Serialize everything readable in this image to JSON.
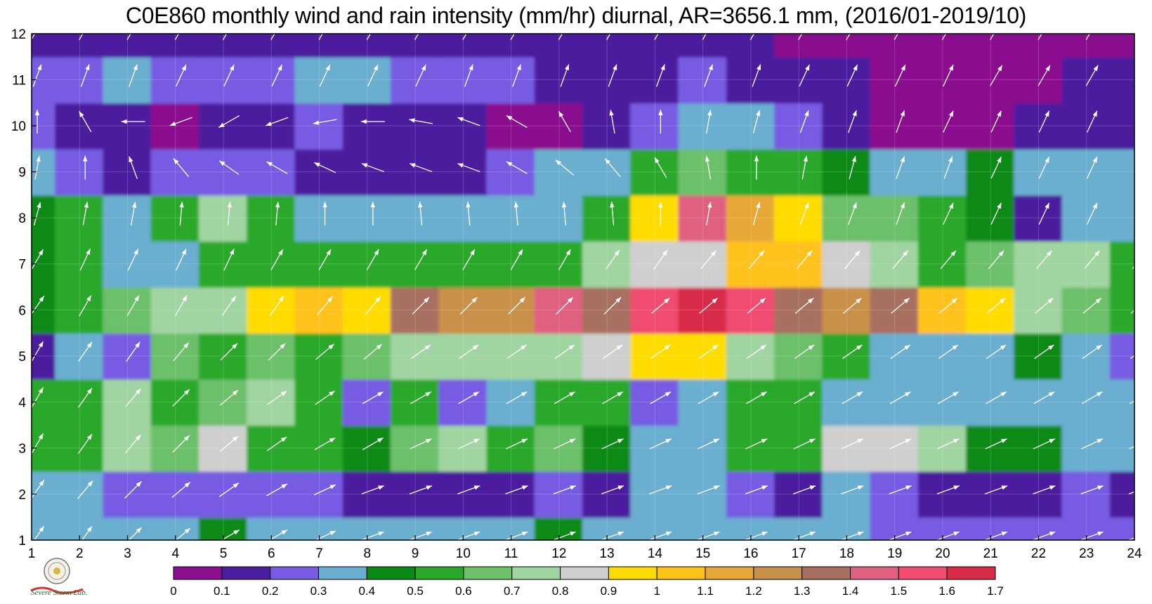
{
  "title": "C0E860 monthly wind and rain intensity (mm/hr) diurnal, AR=3656.1 mm, (2016/01-2019/10)",
  "logo": {
    "text": "Severe Storm Lab."
  },
  "chart_data": {
    "type": "heatmap",
    "title": "C0E860 monthly wind and rain intensity (mm/hr) diurnal, AR=3656.1 mm, (2016/01-2019/10)",
    "x_ticks": [
      "1",
      "2",
      "3",
      "4",
      "5",
      "6",
      "7",
      "8",
      "9",
      "10",
      "11",
      "12",
      "13",
      "14",
      "15",
      "16",
      "17",
      "18",
      "19",
      "20",
      "21",
      "22",
      "23",
      "24"
    ],
    "y_ticks": [
      "1",
      "2",
      "3",
      "4",
      "5",
      "6",
      "7",
      "8",
      "9",
      "10",
      "11",
      "12"
    ],
    "xlim": [
      1,
      24
    ],
    "ylim": [
      1,
      12
    ],
    "colorbar": {
      "levels": [
        "0",
        "0.1",
        "0.2",
        "0.3",
        "0.4",
        "0.5",
        "0.6",
        "0.7",
        "0.8",
        "0.9",
        "1",
        "1.1",
        "1.2",
        "1.3",
        "1.4",
        "1.5",
        "1.6",
        "1.7"
      ],
      "colors": [
        "#8a0e8e",
        "#4b1e9e",
        "#775ce3",
        "#6aaed0",
        "#0a8a14",
        "#2aa82a",
        "#6cc06a",
        "#a0d4a0",
        "#cfcfcf",
        "#ffdc00",
        "#ffc21a",
        "#e8a838",
        "#c8904a",
        "#a87060",
        "#e06080",
        "#f04c70",
        "#d82c48"
      ]
    },
    "rain_mm_hr": [
      [
        0.35,
        0.3,
        0.35,
        0.3,
        0.45,
        0.35,
        0.3,
        0.3,
        0.35,
        0.35,
        0.35,
        0.4,
        0.35,
        0.35,
        0.35,
        0.3,
        0.3,
        0.3,
        0.25,
        0.25,
        0.25,
        0.25,
        0.25,
        0.25
      ],
      [
        0.3,
        0.35,
        0.25,
        0.25,
        0.25,
        0.25,
        0.25,
        0.15,
        0.15,
        0.15,
        0.15,
        0.2,
        0.15,
        0.3,
        0.3,
        0.25,
        0.15,
        0.3,
        0.25,
        0.15,
        0.15,
        0.15,
        0.2,
        0.15
      ],
      [
        0.55,
        0.5,
        0.75,
        0.65,
        0.85,
        0.55,
        0.55,
        0.45,
        0.65,
        0.7,
        0.5,
        0.65,
        0.45,
        0.35,
        0.35,
        0.5,
        0.55,
        0.85,
        0.85,
        0.75,
        0.45,
        0.45,
        0.35,
        0.35
      ],
      [
        0.5,
        0.55,
        0.75,
        0.55,
        0.65,
        0.75,
        0.55,
        0.25,
        0.55,
        0.25,
        0.35,
        0.55,
        0.5,
        0.25,
        0.35,
        0.55,
        0.5,
        0.35,
        0.35,
        0.35,
        0.35,
        0.35,
        0.35,
        0.35
      ],
      [
        0.15,
        0.35,
        0.25,
        0.65,
        0.55,
        0.65,
        0.55,
        0.65,
        0.75,
        0.75,
        0.75,
        0.75,
        0.85,
        0.95,
        0.95,
        0.75,
        0.65,
        0.55,
        0.35,
        0.35,
        0.35,
        0.45,
        0.3,
        0.25
      ],
      [
        0.45,
        0.5,
        0.65,
        0.75,
        0.75,
        0.95,
        1.05,
        0.9,
        1.35,
        1.2,
        1.25,
        1.45,
        1.3,
        1.55,
        1.65,
        1.55,
        1.35,
        1.25,
        1.35,
        1.05,
        0.9,
        0.75,
        0.65,
        0.55
      ],
      [
        0.45,
        0.5,
        0.35,
        0.35,
        0.5,
        0.5,
        0.55,
        0.55,
        0.55,
        0.55,
        0.55,
        0.55,
        0.75,
        0.85,
        0.85,
        1.05,
        1.05,
        0.85,
        0.75,
        0.55,
        0.65,
        0.75,
        0.75,
        0.55
      ],
      [
        0.45,
        0.55,
        0.35,
        0.55,
        0.75,
        0.55,
        0.35,
        0.3,
        0.3,
        0.3,
        0.3,
        0.35,
        0.55,
        0.95,
        1.45,
        1.15,
        0.95,
        0.65,
        0.65,
        0.5,
        0.45,
        0.15,
        0.35,
        0.35
      ],
      [
        0.35,
        0.25,
        0.15,
        0.25,
        0.25,
        0.25,
        0.15,
        0.15,
        0.15,
        0.15,
        0.2,
        0.3,
        0.35,
        0.55,
        0.65,
        0.55,
        0.55,
        0.45,
        0.35,
        0.35,
        0.45,
        0.35,
        0.35,
        0.35
      ],
      [
        0.2,
        0.15,
        0.15,
        0.05,
        0.15,
        0.15,
        0.2,
        0.15,
        0.15,
        0.1,
        0.05,
        0.05,
        0.15,
        0.25,
        0.3,
        0.35,
        0.25,
        0.1,
        0.05,
        0.05,
        0.05,
        0.1,
        0.1,
        0.1
      ],
      [
        0.25,
        0.25,
        0.35,
        0.25,
        0.25,
        0.25,
        0.3,
        0.35,
        0.25,
        0.2,
        0.2,
        0.15,
        0.15,
        0.15,
        0.2,
        0.15,
        0.15,
        0.1,
        0.05,
        0.05,
        0.05,
        0.05,
        0.1,
        0.15
      ],
      [
        0.1,
        0.15,
        0.15,
        0.15,
        0.1,
        0.1,
        0.1,
        0.1,
        0.1,
        0.1,
        0.1,
        0.1,
        0.1,
        0.1,
        0.1,
        0.1,
        0.05,
        0.05,
        0.05,
        0.05,
        0.05,
        0.05,
        0.05,
        0.05
      ]
    ],
    "wind_angle_deg": [
      [
        55,
        55,
        45,
        40,
        30,
        30,
        25,
        20,
        20,
        20,
        20,
        20,
        20,
        20,
        20,
        20,
        20,
        20,
        20,
        20,
        20,
        20,
        20,
        20
      ],
      [
        55,
        50,
        45,
        40,
        35,
        30,
        25,
        20,
        20,
        20,
        20,
        20,
        20,
        20,
        20,
        20,
        20,
        20,
        20,
        20,
        20,
        20,
        20,
        20
      ],
      [
        60,
        55,
        50,
        45,
        40,
        35,
        30,
        30,
        25,
        25,
        25,
        25,
        25,
        25,
        25,
        25,
        25,
        25,
        25,
        25,
        25,
        25,
        25,
        25
      ],
      [
        60,
        55,
        50,
        45,
        40,
        35,
        35,
        30,
        30,
        30,
        30,
        30,
        30,
        30,
        30,
        30,
        30,
        30,
        30,
        30,
        30,
        30,
        30,
        30
      ],
      [
        60,
        55,
        55,
        50,
        45,
        45,
        40,
        40,
        35,
        35,
        35,
        35,
        35,
        35,
        35,
        35,
        35,
        35,
        35,
        35,
        35,
        35,
        35,
        35
      ],
      [
        55,
        60,
        60,
        60,
        55,
        55,
        50,
        50,
        45,
        45,
        45,
        45,
        45,
        40,
        40,
        40,
        40,
        40,
        40,
        40,
        40,
        40,
        40,
        40
      ],
      [
        60,
        65,
        65,
        65,
        65,
        60,
        60,
        60,
        60,
        60,
        60,
        60,
        55,
        55,
        50,
        50,
        50,
        50,
        50,
        50,
        50,
        50,
        50,
        50
      ],
      [
        75,
        80,
        80,
        85,
        85,
        85,
        90,
        90,
        95,
        95,
        95,
        95,
        95,
        90,
        80,
        75,
        70,
        70,
        70,
        65,
        65,
        65,
        65,
        65
      ],
      [
        80,
        90,
        110,
        130,
        145,
        150,
        155,
        160,
        160,
        160,
        150,
        140,
        130,
        120,
        100,
        90,
        80,
        75,
        70,
        70,
        65,
        65,
        65,
        65
      ],
      [
        90,
        120,
        180,
        200,
        210,
        200,
        190,
        180,
        170,
        160,
        150,
        120,
        100,
        90,
        80,
        75,
        70,
        70,
        70,
        65,
        65,
        65,
        65,
        65
      ],
      [
        70,
        70,
        70,
        65,
        65,
        65,
        65,
        65,
        65,
        70,
        70,
        70,
        70,
        70,
        70,
        70,
        65,
        65,
        65,
        65,
        60,
        60,
        60,
        60
      ],
      [
        60,
        60,
        60,
        60,
        60,
        60,
        60,
        60,
        60,
        60,
        60,
        60,
        60,
        60,
        60,
        60,
        60,
        60,
        60,
        60,
        60,
        60,
        60,
        60
      ]
    ]
  }
}
